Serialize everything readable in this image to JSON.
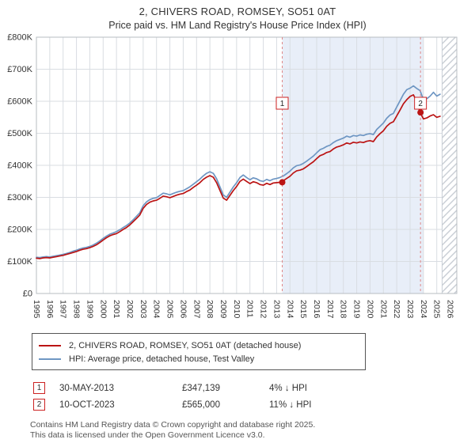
{
  "chart_data": {
    "type": "line",
    "title": "2, CHIVERS ROAD, ROMSEY, SO51 0AT",
    "subtitle": "Price paid vs. HM Land Registry's House Price Index (HPI)",
    "x_range": [
      1995,
      2026.5
    ],
    "x_step": 0.25,
    "x_ticks": [
      1995,
      1996,
      1997,
      1998,
      1999,
      2000,
      2001,
      2002,
      2003,
      2004,
      2005,
      2006,
      2007,
      2008,
      2009,
      2010,
      2011,
      2012,
      2013,
      2014,
      2015,
      2016,
      2017,
      2018,
      2019,
      2020,
      2021,
      2022,
      2023,
      2024,
      2025,
      2026
    ],
    "ylim_k": [
      0,
      800
    ],
    "y_ticks": [
      {
        "v": 0,
        "label": "£0"
      },
      {
        "v": 100,
        "label": "£100K"
      },
      {
        "v": 200,
        "label": "£200K"
      },
      {
        "v": 300,
        "label": "£300K"
      },
      {
        "v": 400,
        "label": "£400K"
      },
      {
        "v": 500,
        "label": "£500K"
      },
      {
        "v": 600,
        "label": "£600K"
      },
      {
        "v": 700,
        "label": "£700K"
      },
      {
        "v": 800,
        "label": "£800K"
      }
    ],
    "grid": true,
    "legend_position": "bottom",
    "series": [
      {
        "name": "2, CHIVERS ROAD, ROMSEY, SO51 0AT (detached house)",
        "color": "#bb1414",
        "values_k": [
          110,
          109,
          111,
          112,
          111,
          113,
          115,
          117,
          119,
          122,
          125,
          128,
          131,
          135,
          138,
          140,
          143,
          147,
          152,
          159,
          167,
          174,
          180,
          184,
          187,
          193,
          200,
          206,
          214,
          224,
          234,
          245,
          266,
          278,
          285,
          289,
          291,
          297,
          304,
          302,
          299,
          303,
          307,
          310,
          312,
          318,
          323,
          331,
          338,
          346,
          356,
          363,
          368,
          363,
          346,
          322,
          298,
          291,
          306,
          321,
          334,
          350,
          357,
          350,
          343,
          349,
          346,
          340,
          338,
          344,
          340,
          345,
          346,
          347,
          352,
          359,
          366,
          376,
          383,
          385,
          389,
          396,
          404,
          411,
          421,
          430,
          434,
          440,
          443,
          451,
          457,
          460,
          464,
          470,
          467,
          472,
          470,
          473,
          471,
          475,
          477,
          474,
          489,
          499,
          508,
          522,
          531,
          536,
          554,
          573,
          592,
          605,
          615,
          620,
          600,
          565,
          545,
          548,
          554,
          558,
          550,
          553
        ]
      },
      {
        "name": "HPI: Average price, detached house, Test Valley",
        "color": "#6e96c3",
        "values_k": [
          113,
          112,
          114,
          115,
          114,
          116,
          118,
          120,
          122,
          125,
          128,
          132,
          135,
          139,
          142,
          144,
          147,
          151,
          157,
          164,
          172,
          179,
          185,
          189,
          193,
          199,
          206,
          212,
          220,
          230,
          241,
          252,
          274,
          286,
          293,
          297,
          299,
          306,
          313,
          311,
          308,
          312,
          316,
          319,
          321,
          327,
          333,
          341,
          349,
          357,
          367,
          375,
          380,
          375,
          358,
          333,
          308,
          300,
          316,
          332,
          346,
          362,
          370,
          362,
          355,
          361,
          358,
          352,
          350,
          356,
          352,
          357,
          359,
          362,
          367,
          374,
          382,
          392,
          399,
          401,
          406,
          413,
          421,
          429,
          439,
          449,
          453,
          459,
          463,
          471,
          477,
          481,
          485,
          491,
          488,
          493,
          491,
          495,
          493,
          497,
          499,
          496,
          512,
          522,
          532,
          547,
          557,
          562,
          582,
          602,
          622,
          636,
          641,
          648,
          640,
          633,
          605,
          608,
          616,
          628,
          616,
          622
        ]
      }
    ],
    "shaded_region": {
      "from": 2013.42,
      "to": 2024.0,
      "color": "#e8eef8"
    },
    "hatch_region": {
      "from": 2025.4,
      "to": 2026.5
    },
    "sale_line_color": "#e08888",
    "sales": [
      {
        "num": "1",
        "x": 2013.42,
        "value_k": 347.139
      },
      {
        "num": "2",
        "x": 2023.78,
        "value_k": 565
      }
    ]
  },
  "transactions": [
    {
      "num": "1",
      "date": "30-MAY-2013",
      "price": "£347,139",
      "delta": "4% ↓ HPI"
    },
    {
      "num": "2",
      "date": "10-OCT-2023",
      "price": "£565,000",
      "delta": "11% ↓ HPI"
    }
  ],
  "footer": {
    "line1": "Contains HM Land Registry data © Crown copyright and database right 2025.",
    "line2": "This data is licensed under the Open Government Licence v3.0."
  }
}
